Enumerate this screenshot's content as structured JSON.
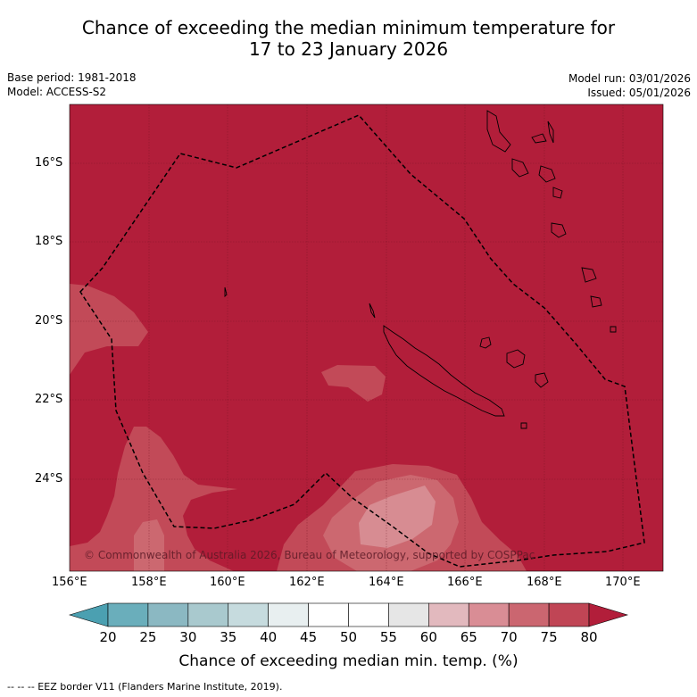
{
  "title": {
    "line1": "Chance of exceeding the median minimum temperature for",
    "line2": "17 to 23 January 2026"
  },
  "meta": {
    "base_period": "Base period: 1981-2018",
    "model": "Model: ACCESS-S2",
    "model_run": "Model run: 03/01/2026",
    "issued": "Issued: 05/01/2026"
  },
  "map": {
    "copyright": "© Commonwealth of Australia 2026, Bureau of Meteorology, supported by COSPPac",
    "lat_labels": [
      "16°S",
      "18°S",
      "20°S",
      "22°S",
      "24°S"
    ],
    "lon_labels": [
      "156°E",
      "158°E",
      "160°E",
      "162°E",
      "164°E",
      "166°E",
      "168°E",
      "170°E"
    ],
    "colors": {
      "background_80plus": "#b21e3a",
      "band_75_80": "#c24a58",
      "band_70_75": "#cc6870",
      "band_65_70": "#d78c92"
    }
  },
  "colorbar": {
    "ticks": [
      "20",
      "25",
      "30",
      "35",
      "40",
      "45",
      "50",
      "55",
      "60",
      "65",
      "70",
      "75",
      "80"
    ],
    "colors": [
      "#6aaebb",
      "#8bb8c2",
      "#a9c9ce",
      "#c6dbde",
      "#e8eff0",
      "#ffffff",
      "#ffffff",
      "#e6e6e6",
      "#e2b9be",
      "#d98d95",
      "#cb6670",
      "#c04555"
    ],
    "low_arrow_color": "#4ba0b1",
    "high_arrow_color": "#b21e3a",
    "label": "Chance of exceeding median min. temp. (%)"
  },
  "footnote": "--  --  -- EEZ border V11 (Flanders Marine Institute, 2019)."
}
